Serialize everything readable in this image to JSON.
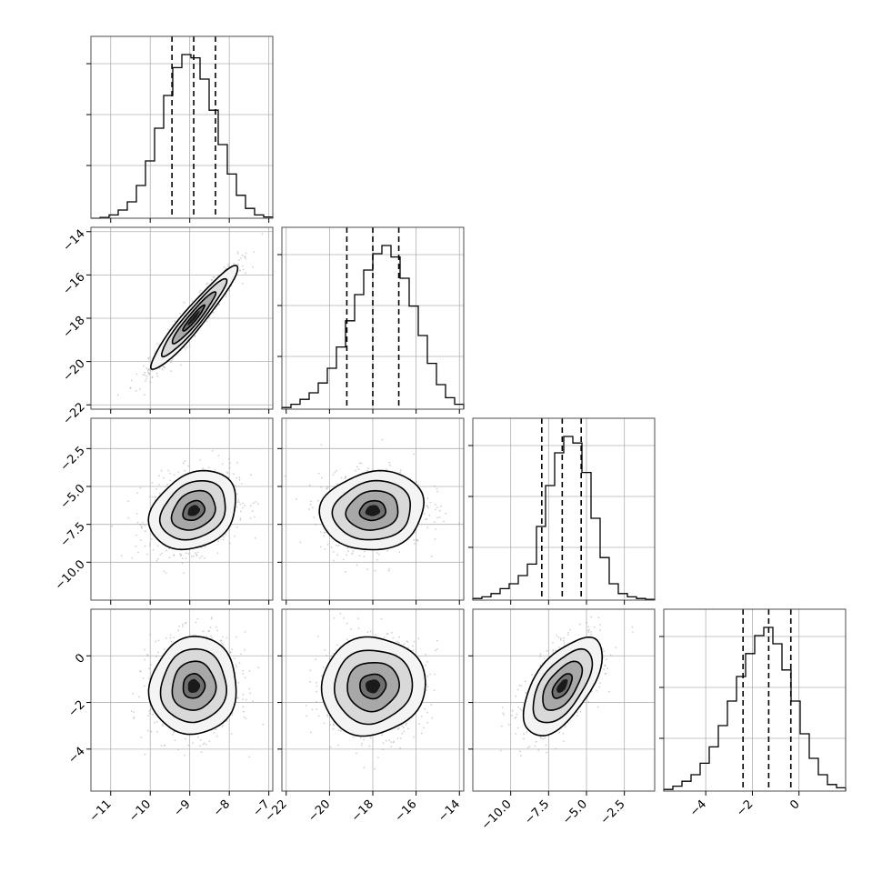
{
  "chart_data": {
    "type": "corner",
    "grid": true,
    "quantile_lines": "dashed",
    "params": [
      {
        "range": [
          -11.5,
          -6.9
        ],
        "ticks": [
          -11,
          -10,
          -9,
          -8,
          -7
        ],
        "tick_labels": [
          "−11",
          "−10",
          "−9",
          "−8",
          "−7"
        ],
        "quantiles": [
          -9.45,
          -8.9,
          -8.35
        ],
        "hist_density": [
          0.0,
          0.005,
          0.02,
          0.05,
          0.1,
          0.2,
          0.35,
          0.55,
          0.75,
          0.92,
          1.0,
          0.98,
          0.85,
          0.66,
          0.45,
          0.27,
          0.14,
          0.06,
          0.02,
          0.008
        ]
      },
      {
        "range": [
          -22.2,
          -13.8
        ],
        "ticks": [
          -22,
          -20,
          -18,
          -16,
          -14
        ],
        "tick_labels": [
          "−22",
          "−20",
          "−18",
          "−16",
          "−14"
        ],
        "quantiles": [
          -19.2,
          -18.0,
          -16.8
        ],
        "hist_density": [
          0.01,
          0.03,
          0.06,
          0.1,
          0.16,
          0.25,
          0.38,
          0.54,
          0.7,
          0.85,
          0.95,
          1.0,
          0.93,
          0.8,
          0.63,
          0.45,
          0.28,
          0.15,
          0.07,
          0.03
        ]
      },
      {
        "range": [
          -12.5,
          -0.5
        ],
        "ticks": [
          -10.0,
          -7.5,
          -5.0,
          -2.5
        ],
        "tick_labels": [
          "−10.0",
          "−7.5",
          "−5.0",
          "−2.5"
        ],
        "quantiles": [
          -7.95,
          -6.6,
          -5.35
        ],
        "hist_density": [
          0.01,
          0.02,
          0.04,
          0.07,
          0.1,
          0.15,
          0.22,
          0.45,
          0.7,
          0.9,
          1.0,
          0.96,
          0.78,
          0.5,
          0.26,
          0.1,
          0.04,
          0.02,
          0.01,
          0.005
        ]
      },
      {
        "range": [
          -5.8,
          2.0
        ],
        "ticks": [
          -4,
          -2,
          0
        ],
        "tick_labels": [
          "−4",
          "−2",
          "0"
        ],
        "quantiles": [
          -2.4,
          -1.3,
          -0.35
        ],
        "hist_density": [
          0.01,
          0.03,
          0.06,
          0.1,
          0.17,
          0.27,
          0.4,
          0.55,
          0.7,
          0.84,
          0.95,
          1.0,
          0.9,
          0.74,
          0.55,
          0.35,
          0.2,
          0.1,
          0.04,
          0.02
        ]
      }
    ],
    "pairs": [
      {
        "row": 1,
        "col": 0,
        "mean": [
          -8.9,
          -18.0
        ],
        "sd": [
          0.55,
          1.2
        ],
        "rho": 0.95
      },
      {
        "row": 2,
        "col": 0,
        "mean": [
          -8.9,
          -6.6
        ],
        "sd": [
          0.55,
          1.3
        ],
        "rho": 0.25
      },
      {
        "row": 2,
        "col": 1,
        "mean": [
          -18.0,
          -6.6
        ],
        "sd": [
          1.2,
          1.3
        ],
        "rho": 0.1
      },
      {
        "row": 3,
        "col": 0,
        "mean": [
          -8.9,
          -1.3
        ],
        "sd": [
          0.55,
          1.05
        ],
        "rho": 0.05
      },
      {
        "row": 3,
        "col": 1,
        "mean": [
          -18.0,
          -1.3
        ],
        "sd": [
          1.2,
          1.05
        ],
        "rho": 0.05
      },
      {
        "row": 3,
        "col": 2,
        "mean": [
          -6.6,
          -1.3
        ],
        "sd": [
          1.3,
          1.05
        ],
        "rho": 0.6
      }
    ],
    "contour_levels_sigma": [
      0.5,
      1.0,
      1.5,
      2.0
    ],
    "colors": {
      "contour": "#000000",
      "scatter": "#9a9a9a",
      "grid": "#b0b0b0",
      "frame": "#4d4d4d"
    }
  }
}
